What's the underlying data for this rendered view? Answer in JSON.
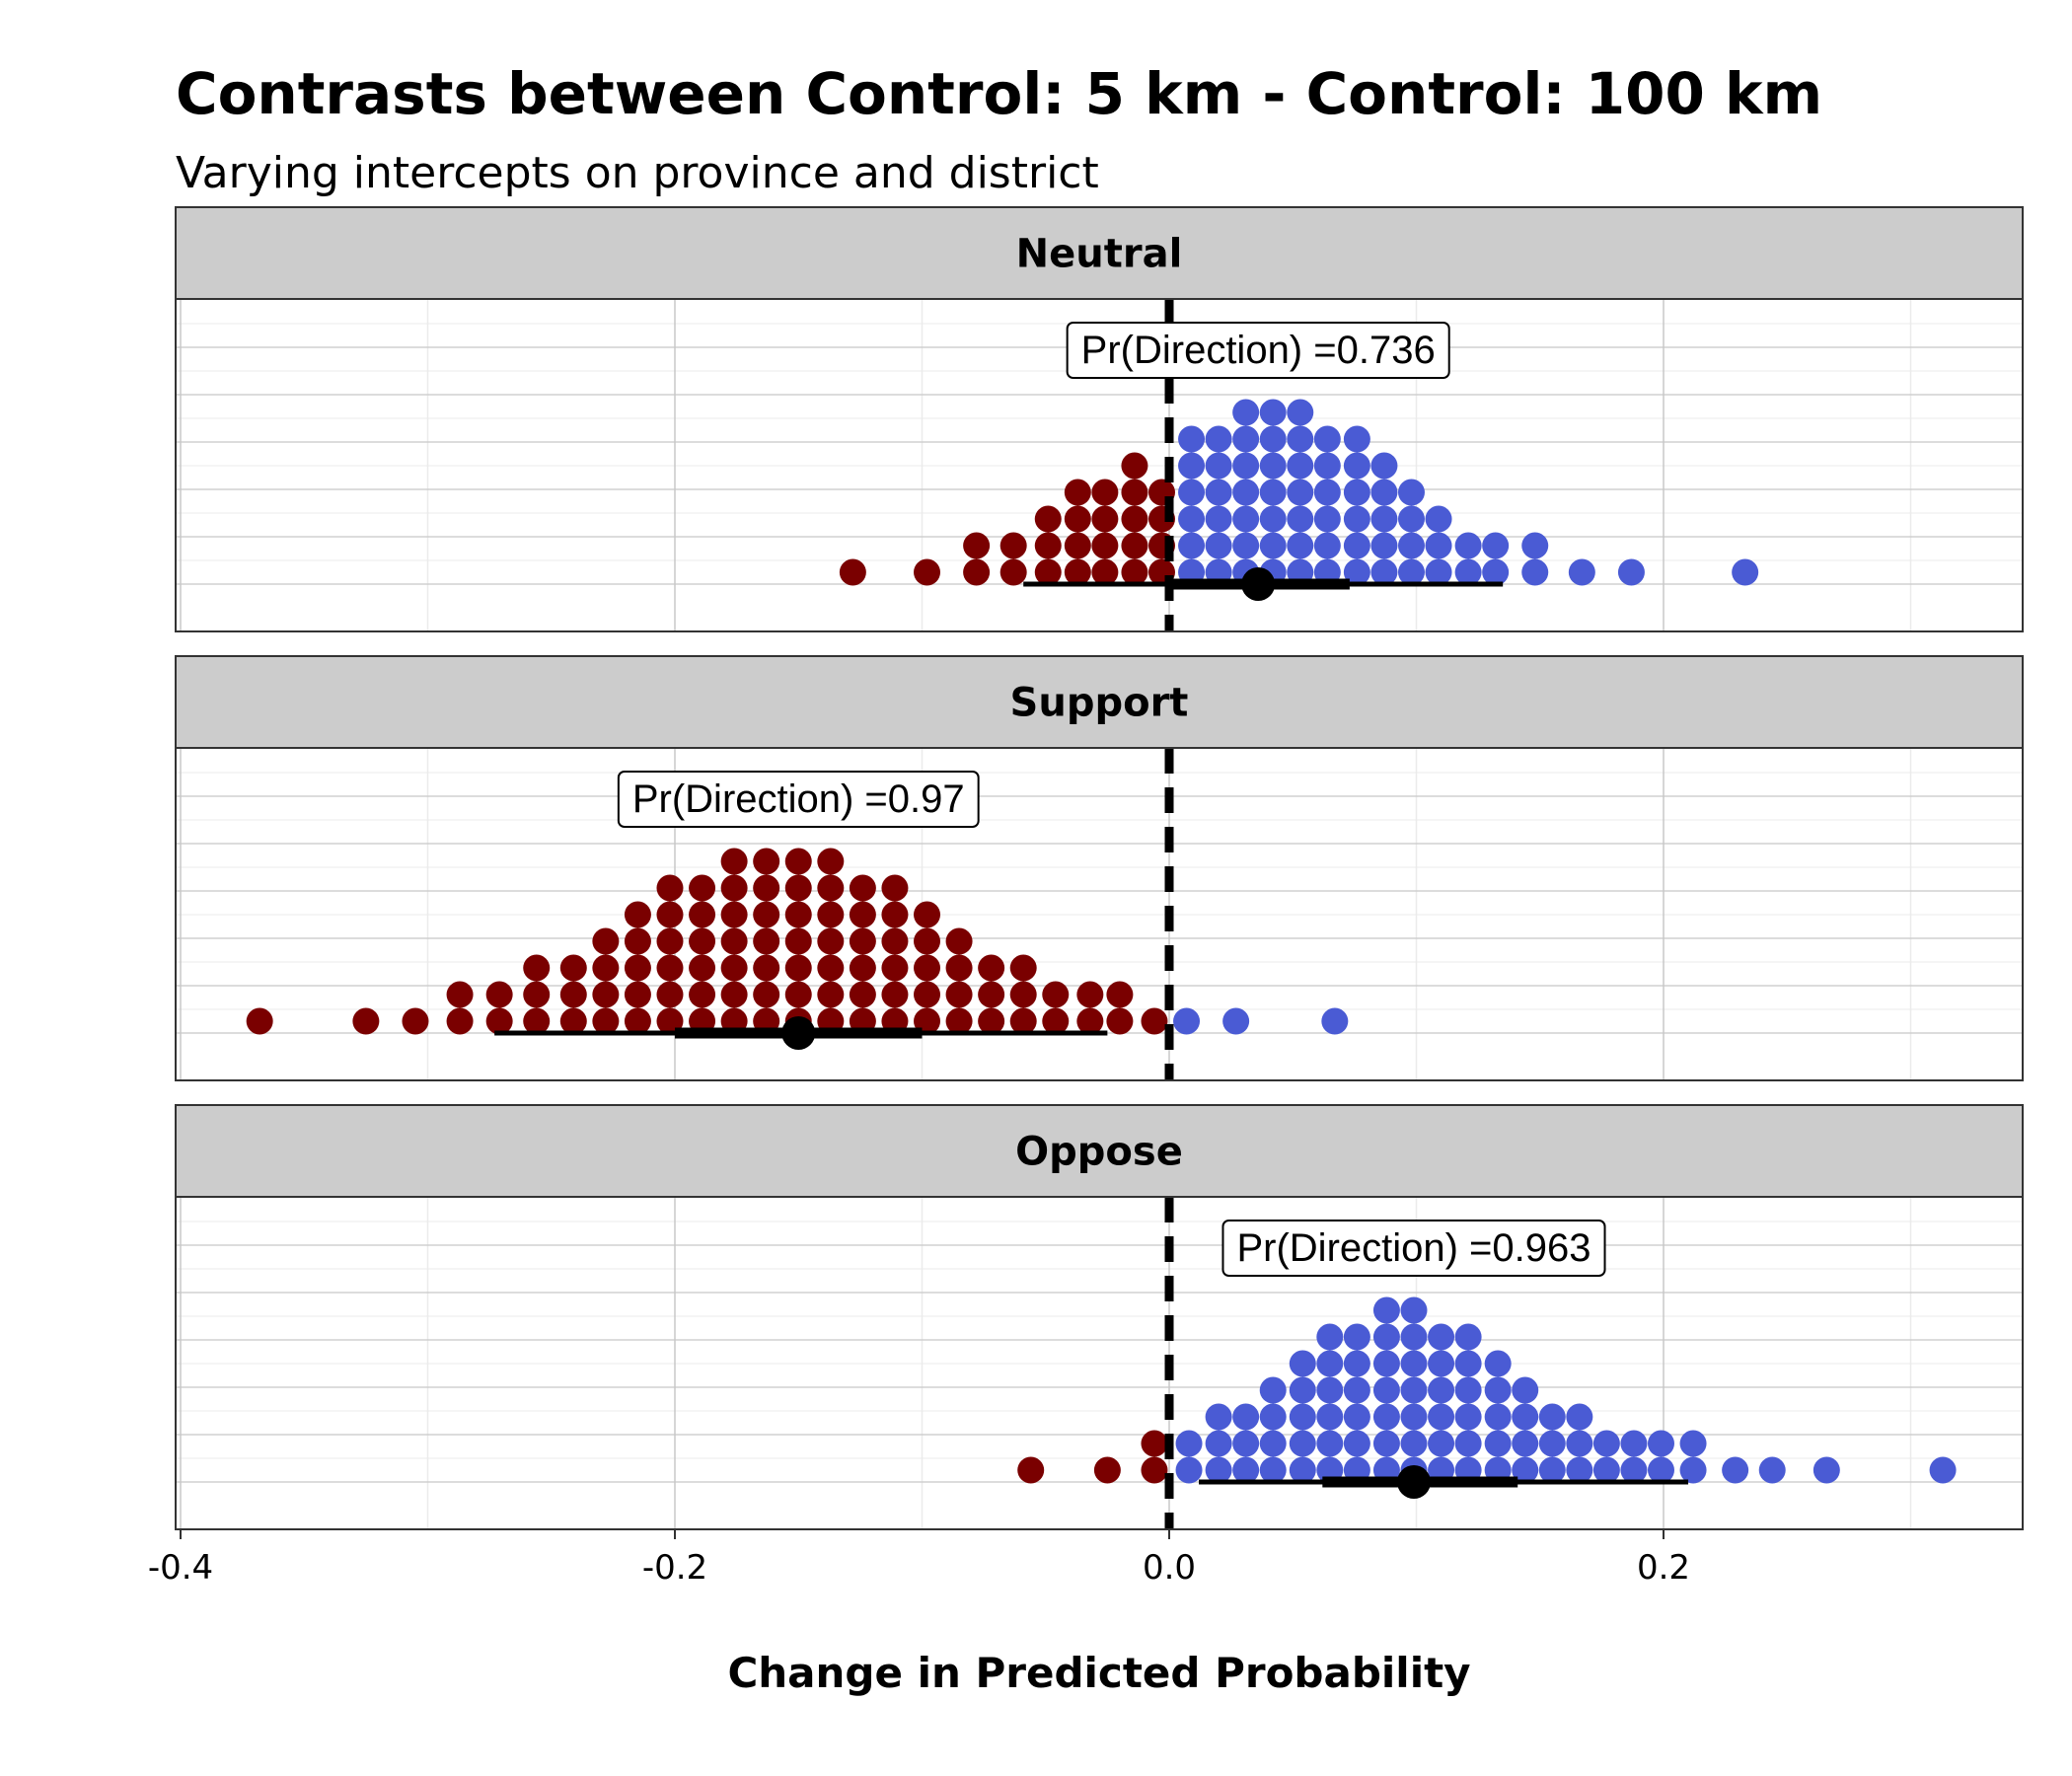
{
  "chart_data": {
    "type": "dotplot",
    "title": "Contrasts between Control: 5 km - Control: 100 km",
    "subtitle": "Varying intercepts on province and district",
    "xlabel": "Change in Predicted Probability",
    "xlim": [
      -0.4,
      0.35
    ],
    "x_ticks": [
      -0.4,
      -0.2,
      0.0,
      0.2
    ],
    "x_tick_labels": [
      "-0.4",
      "-0.2",
      "0.0",
      "0.2"
    ],
    "reference_line": 0.0,
    "colors": {
      "negative": "#7a0000",
      "positive": "#4a5bd4",
      "strip": "#cccccc",
      "interval": "#000000"
    },
    "panels": [
      {
        "label": "Neutral",
        "pd_label": "Pr(Direction) =0.736",
        "pd_x": 0.036,
        "point_estimate": 0.036,
        "interval_66": [
          0.0,
          0.073
        ],
        "interval_95": [
          -0.059,
          0.135
        ],
        "columns": [
          [
            -0.128,
            1
          ],
          [
            -0.098,
            1
          ],
          [
            -0.078,
            2
          ],
          [
            -0.063,
            2
          ],
          [
            -0.049,
            3
          ],
          [
            -0.037,
            4
          ],
          [
            -0.026,
            4
          ],
          [
            -0.014,
            5
          ],
          [
            -0.003,
            4
          ],
          [
            0.009,
            6
          ],
          [
            0.02,
            6
          ],
          [
            0.031,
            7
          ],
          [
            0.042,
            7
          ],
          [
            0.053,
            7
          ],
          [
            0.064,
            6
          ],
          [
            0.076,
            6
          ],
          [
            0.087,
            5
          ],
          [
            0.098,
            4
          ],
          [
            0.109,
            3
          ],
          [
            0.121,
            2
          ],
          [
            0.132,
            2
          ],
          [
            0.148,
            2
          ],
          [
            0.167,
            1
          ],
          [
            0.187,
            1
          ],
          [
            0.233,
            1
          ]
        ]
      },
      {
        "label": "Support",
        "pd_label": "Pr(Direction) =0.97",
        "pd_x": -0.15,
        "point_estimate": -0.15,
        "interval_66": [
          -0.2,
          -0.1
        ],
        "interval_95": [
          -0.273,
          -0.025
        ],
        "columns": [
          [
            -0.368,
            1
          ],
          [
            -0.325,
            1
          ],
          [
            -0.305,
            1
          ],
          [
            -0.287,
            2
          ],
          [
            -0.271,
            2
          ],
          [
            -0.256,
            3
          ],
          [
            -0.241,
            3
          ],
          [
            -0.228,
            4
          ],
          [
            -0.215,
            5
          ],
          [
            -0.202,
            6
          ],
          [
            -0.189,
            6
          ],
          [
            -0.176,
            7
          ],
          [
            -0.163,
            7
          ],
          [
            -0.15,
            7
          ],
          [
            -0.137,
            7
          ],
          [
            -0.124,
            6
          ],
          [
            -0.111,
            6
          ],
          [
            -0.098,
            5
          ],
          [
            -0.085,
            4
          ],
          [
            -0.072,
            3
          ],
          [
            -0.059,
            3
          ],
          [
            -0.046,
            2
          ],
          [
            -0.032,
            2
          ],
          [
            -0.02,
            2
          ],
          [
            -0.006,
            1
          ],
          [
            0.007,
            1
          ],
          [
            0.027,
            1
          ],
          [
            0.067,
            1
          ]
        ]
      },
      {
        "label": "Oppose",
        "pd_label": "Pr(Direction) =0.963",
        "pd_x": 0.099,
        "point_estimate": 0.099,
        "interval_66": [
          0.062,
          0.141
        ],
        "interval_95": [
          0.012,
          0.21
        ],
        "columns": [
          [
            -0.056,
            1
          ],
          [
            -0.025,
            1
          ],
          [
            -0.006,
            2
          ],
          [
            0.008,
            2
          ],
          [
            0.02,
            3
          ],
          [
            0.031,
            3
          ],
          [
            0.042,
            4
          ],
          [
            0.054,
            5
          ],
          [
            0.065,
            6
          ],
          [
            0.076,
            6
          ],
          [
            0.088,
            7
          ],
          [
            0.099,
            7
          ],
          [
            0.11,
            6
          ],
          [
            0.121,
            6
          ],
          [
            0.133,
            5
          ],
          [
            0.144,
            4
          ],
          [
            0.155,
            3
          ],
          [
            0.166,
            3
          ],
          [
            0.177,
            2
          ],
          [
            0.188,
            2
          ],
          [
            0.199,
            2
          ],
          [
            0.212,
            2
          ],
          [
            0.229,
            1
          ],
          [
            0.244,
            1
          ],
          [
            0.266,
            1
          ],
          [
            0.313,
            1
          ]
        ]
      }
    ]
  }
}
